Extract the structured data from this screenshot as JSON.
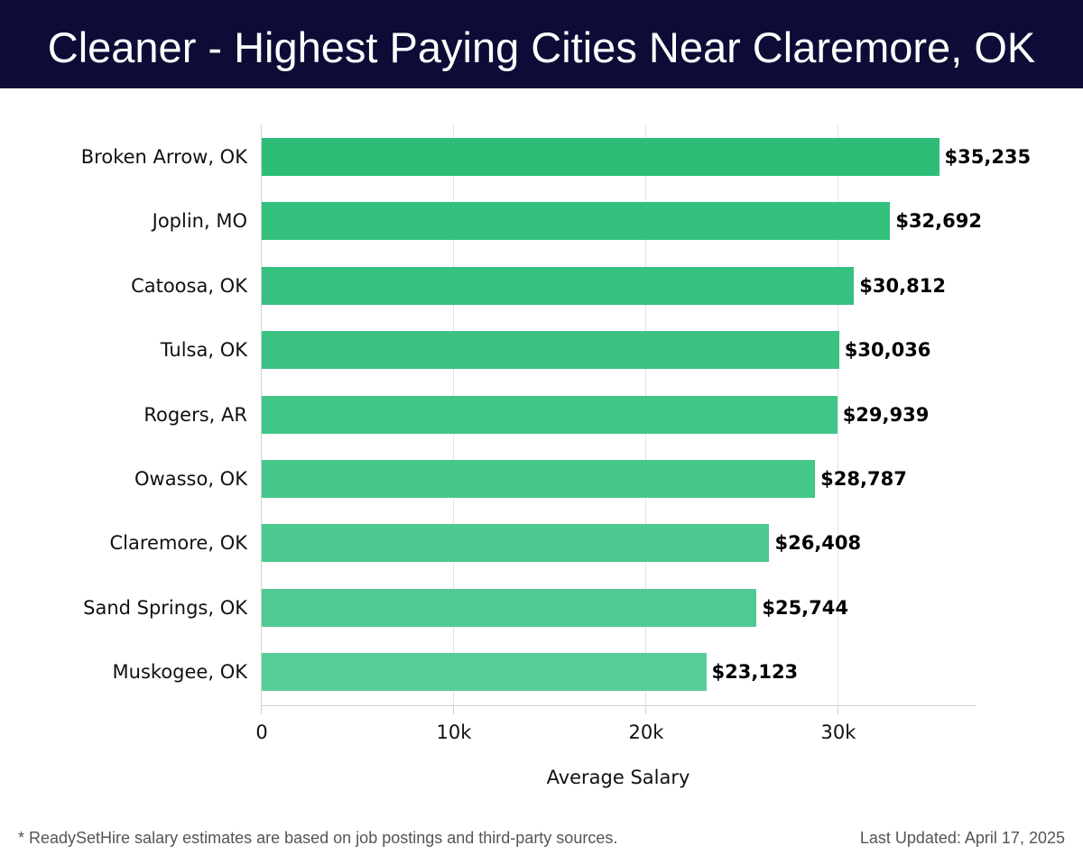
{
  "header": {
    "title": "Cleaner - Highest Paying Cities Near Claremore, OK"
  },
  "footer": {
    "footnote": "* ReadySetHire salary estimates are based on job postings and third-party sources.",
    "last_updated": "Last Updated: April 17, 2025"
  },
  "colors": {
    "header_bg": "#0c0c36",
    "bar_top": "#2dbd77",
    "bar_bottom": "#5acd98"
  },
  "axis": {
    "xlabel": "Average Salary",
    "ticks": [
      {
        "label": "0",
        "value": 0
      },
      {
        "label": "10k",
        "value": 10000
      },
      {
        "label": "20k",
        "value": 20000
      },
      {
        "label": "30k",
        "value": 30000
      }
    ]
  },
  "bars": [
    {
      "city": "Broken Arrow, OK",
      "value": 35235,
      "label": "$35,235",
      "color": "#2dbd77"
    },
    {
      "city": "Joplin, MO",
      "value": 32692,
      "label": "$32,692",
      "color": "#33c07c"
    },
    {
      "city": "Catoosa, OK",
      "value": 30812,
      "label": "$30,812",
      "color": "#37c180"
    },
    {
      "city": "Tulsa, OK",
      "value": 30036,
      "label": "$30,036",
      "color": "#3cc383"
    },
    {
      "city": "Rogers, AR",
      "value": 29939,
      "label": "$29,939",
      "color": "#41c587"
    },
    {
      "city": "Owasso, OK",
      "value": 28787,
      "label": "$28,787",
      "color": "#46c78a"
    },
    {
      "city": "Claremore, OK",
      "value": 26408,
      "label": "$26,408",
      "color": "#4bc98e"
    },
    {
      "city": "Sand Springs, OK",
      "value": 25744,
      "label": "$25,744",
      "color": "#50ca92"
    },
    {
      "city": "Muskogee, OK",
      "value": 23123,
      "label": "$23,123",
      "color": "#58cd97"
    }
  ],
  "chart_data": {
    "type": "bar",
    "orientation": "horizontal",
    "title": "Cleaner - Highest Paying Cities Near Claremore, OK",
    "categories": [
      "Broken Arrow, OK",
      "Joplin, MO",
      "Catoosa, OK",
      "Tulsa, OK",
      "Rogers, AR",
      "Owasso, OK",
      "Claremore, OK",
      "Sand Springs, OK",
      "Muskogee, OK"
    ],
    "values": [
      35235,
      32692,
      30812,
      30036,
      29939,
      28787,
      26408,
      25744,
      23123
    ],
    "data_labels": [
      "$35,235",
      "$32,692",
      "$30,812",
      "$30,036",
      "$29,939",
      "$28,787",
      "$26,408",
      "$25,744",
      "$23,123"
    ],
    "xlabel": "Average Salary",
    "ylabel": "",
    "xticks": [
      "0",
      "10k",
      "20k",
      "30k"
    ],
    "xlim": [
      0,
      37000
    ],
    "grid": "vertical",
    "legend": "none"
  }
}
